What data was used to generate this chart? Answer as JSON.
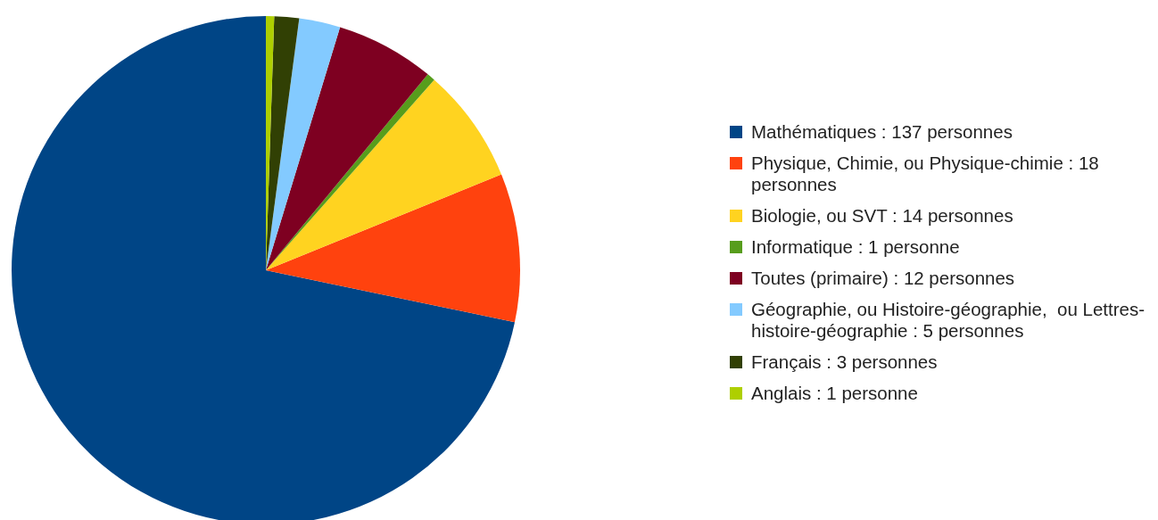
{
  "chart_data": {
    "type": "pie",
    "categories": [
      "Mathématiques : 137 personnes",
      "Physique, Chimie, ou Physique-chimie : 18 personnes",
      "Biologie, ou SVT : 14 personnes",
      "Informatique : 1 personne",
      "Toutes (primaire) : 12 personnes",
      "Géographie, ou Histoire-géographie,  ou Lettres-histoire-géographie : 5 personnes",
      "Français : 3 personnes",
      "Anglais : 1 personne"
    ],
    "values": [
      137,
      18,
      14,
      1,
      12,
      5,
      3,
      1
    ],
    "colors": [
      "#004586",
      "#ff420e",
      "#ffd320",
      "#579d1c",
      "#7e0021",
      "#83caff",
      "#314004",
      "#aecf00"
    ],
    "legend": "right"
  }
}
